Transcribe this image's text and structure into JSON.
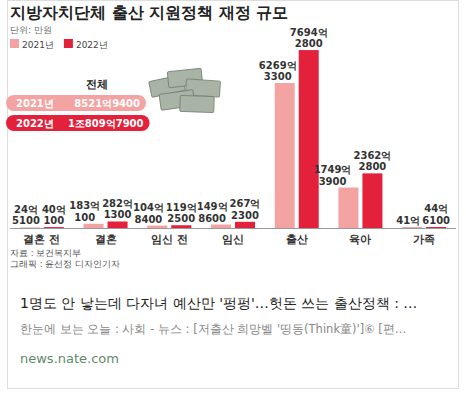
{
  "chart_data": {
    "type": "bar",
    "title": "지방자치단체 출산 지원정책 재정 규모",
    "subtitle": "단위: 만원",
    "categories": [
      "결혼 전",
      "결혼",
      "임신 전",
      "임신",
      "출산",
      "육아",
      "가족"
    ],
    "series": [
      {
        "name": "2021년",
        "color": "#f4a3a3",
        "values": [
          245100,
          1830100,
          1048400,
          1498600,
          62693300,
          17493900,
          410000
        ],
        "value_labels": [
          "24억5100",
          "183억100",
          "104억8400",
          "149억8600",
          "6269억3300",
          "1749억3900",
          "41억"
        ]
      },
      {
        "name": "2022년",
        "color": "#e3213b",
        "values": [
          400100,
          2821300,
          1192500,
          2672300,
          76942800,
          23622800,
          446100
        ],
        "value_labels": [
          "40억100",
          "282억1300",
          "119억2500",
          "267억2300",
          "7694억2800",
          "2362억2800",
          "44억6100"
        ]
      }
    ],
    "ylim": [
      0,
      80000000
    ],
    "data_labels": true,
    "tick_labels": "x",
    "legend": "top-left",
    "totals": {
      "label": "전체",
      "values": [
        85219400,
        108097900
      ],
      "value_labels": [
        "8521억9400",
        "1조809억7900"
      ]
    },
    "source": "자료 : 보건복지부",
    "credit": "그래픽 : 윤선정 디자인기자"
  },
  "card": {
    "headline": "1명도 안 낳는데 다자녀 예산만 '펑펑'…헛돈 쓰는 출산정책 : …",
    "subtitle": "한눈에 보는 오늘 : 사회 - 뉴스 : [저출산 희망벨 '띵동(Think童)']⑥ [편…",
    "url": "news.nate.com"
  }
}
